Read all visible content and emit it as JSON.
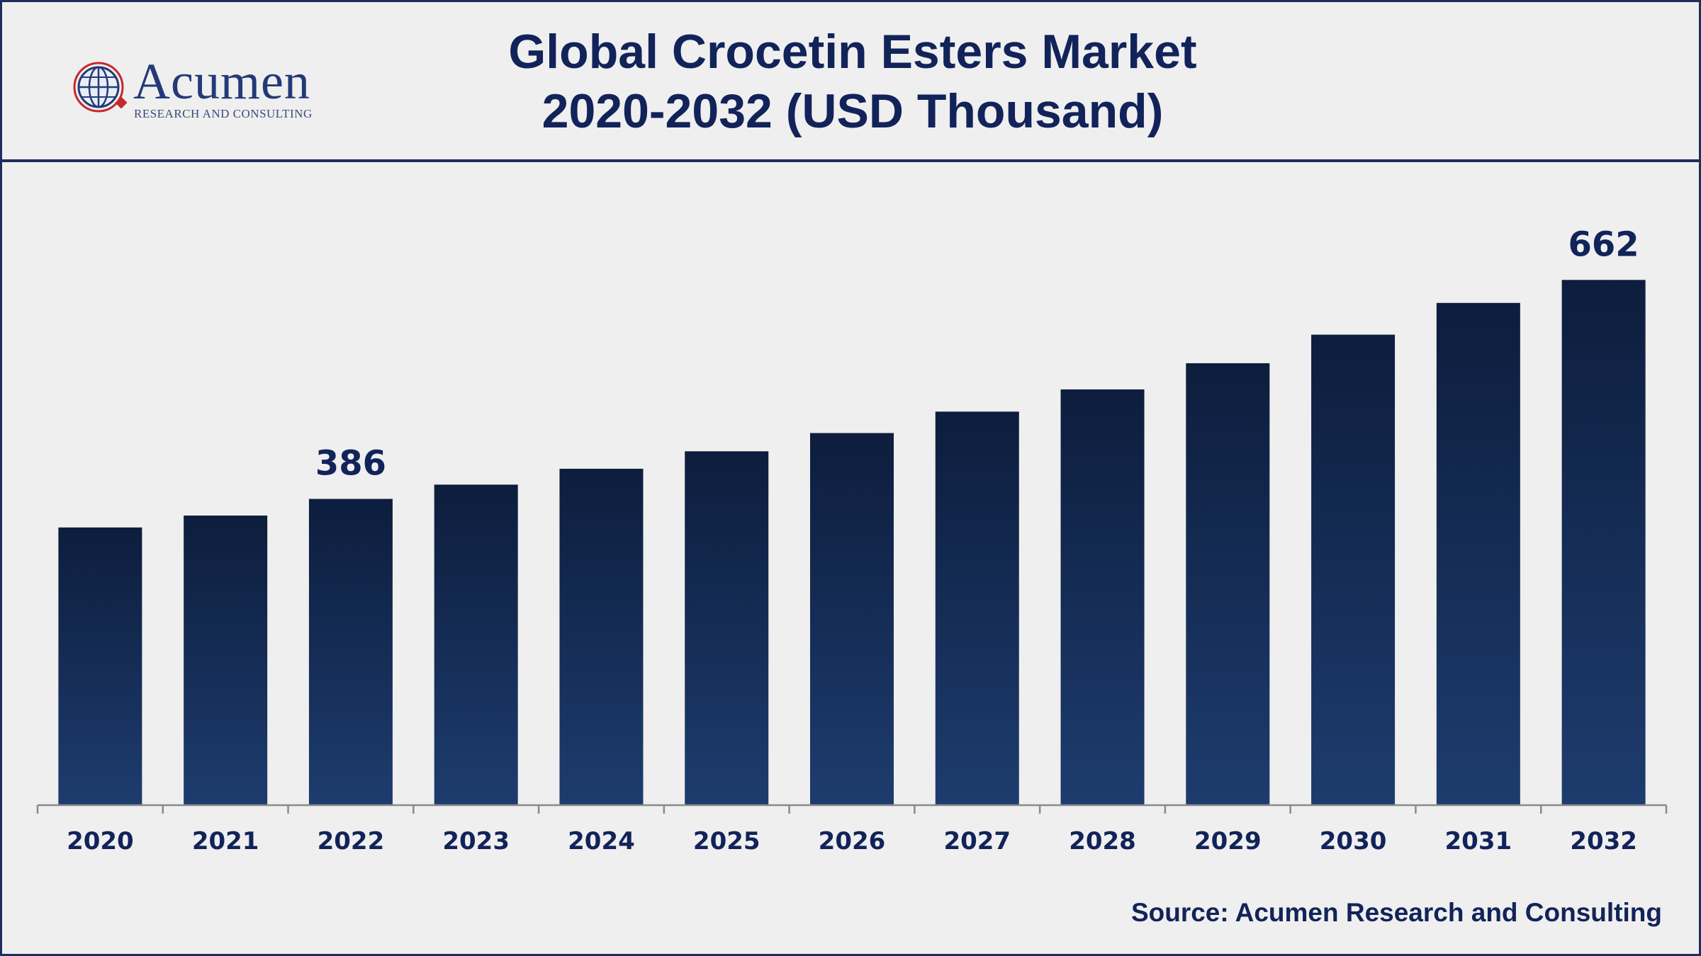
{
  "header": {
    "logo_name": "Acumen",
    "logo_tagline": "RESEARCH AND CONSULTING",
    "title_line1": "Global Crocetin Esters Market",
    "title_line2": "2020-2032 (USD Thousand)"
  },
  "footer": {
    "source": "Source: Acumen Research and Consulting"
  },
  "colors": {
    "bar_top": "#0d1d3d",
    "bar_bottom": "#1d3c6e",
    "text": "#12235a",
    "axis": "#8a8a8a"
  },
  "chart_data": {
    "type": "bar",
    "categories": [
      "2020",
      "2021",
      "2022",
      "2023",
      "2024",
      "2025",
      "2026",
      "2027",
      "2028",
      "2029",
      "2030",
      "2031",
      "2032"
    ],
    "values": [
      350,
      365,
      386,
      404,
      424,
      446,
      469,
      496,
      524,
      557,
      593,
      633,
      662
    ],
    "data_labels": [
      {
        "category": "2022",
        "value": 386,
        "text": "386"
      },
      {
        "category": "2032",
        "value": 662,
        "text": "662"
      }
    ],
    "ylim": [
      0,
      700
    ],
    "grid": false,
    "legend": "none"
  }
}
